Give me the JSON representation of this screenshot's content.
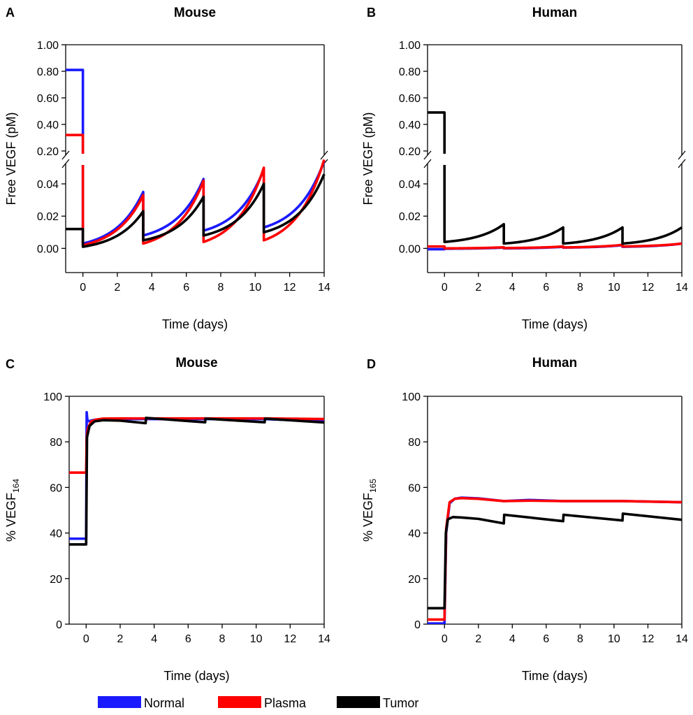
{
  "colors": {
    "normal": "#1a1aff",
    "plasma": "#ff0000",
    "tumor": "#000000"
  },
  "legend": [
    {
      "key": "normal",
      "label": "Normal"
    },
    {
      "key": "plasma",
      "label": "Plasma"
    },
    {
      "key": "tumor",
      "label": "Tumor"
    }
  ],
  "chart_data": [
    {
      "panel": "A",
      "title": "Mouse",
      "type": "line",
      "xlabel": "Time (days)",
      "ylabel": "Free VEGF (pM)",
      "xlim": [
        -1,
        14
      ],
      "xticks": [
        0,
        2,
        4,
        6,
        8,
        10,
        12,
        14
      ],
      "broken_axis": true,
      "ylim_low": [
        -0.015,
        0.05
      ],
      "ylim_high": [
        0.2,
        1.0
      ],
      "yticks_low": [
        "0.00",
        "0.02",
        "0.04"
      ],
      "yticks_high": [
        "0.20",
        "0.40",
        "0.60",
        "0.80",
        "1.00"
      ],
      "dose_days": [
        0,
        3.5,
        7,
        10.5
      ],
      "series": [
        {
          "key": "normal",
          "name": "Normal",
          "baseline": 0.81,
          "cycles": [
            {
              "t0": 0,
              "t1": 3.5,
              "y0": 0.003,
              "y1": 0.035
            },
            {
              "t0": 3.5,
              "t1": 7,
              "y0": 0.008,
              "y1": 0.043
            },
            {
              "t0": 7,
              "t1": 10.5,
              "y0": 0.011,
              "y1": 0.049
            },
            {
              "t0": 10.5,
              "t1": 14,
              "y0": 0.013,
              "y1": 0.054
            }
          ]
        },
        {
          "key": "plasma",
          "name": "Plasma",
          "baseline": 0.32,
          "cycles": [
            {
              "t0": 0,
              "t1": 3.5,
              "y0": 0.002,
              "y1": 0.033
            },
            {
              "t0": 3.5,
              "t1": 7,
              "y0": 0.003,
              "y1": 0.042
            },
            {
              "t0": 7,
              "t1": 10.5,
              "y0": 0.004,
              "y1": 0.05
            },
            {
              "t0": 10.5,
              "t1": 14,
              "y0": 0.005,
              "y1": 0.055
            }
          ]
        },
        {
          "key": "tumor",
          "name": "Tumor",
          "baseline": 0.012,
          "cycles": [
            {
              "t0": 0,
              "t1": 3.5,
              "y0": 0.001,
              "y1": 0.023
            },
            {
              "t0": 3.5,
              "t1": 7,
              "y0": 0.005,
              "y1": 0.032
            },
            {
              "t0": 7,
              "t1": 10.5,
              "y0": 0.008,
              "y1": 0.04
            },
            {
              "t0": 10.5,
              "t1": 14,
              "y0": 0.01,
              "y1": 0.046
            }
          ]
        }
      ]
    },
    {
      "panel": "B",
      "title": "Human",
      "type": "line",
      "xlabel": "Time (days)",
      "ylabel": "Free VEGF (pM)",
      "xlim": [
        -1,
        14
      ],
      "xticks": [
        0,
        2,
        4,
        6,
        8,
        10,
        12,
        14
      ],
      "broken_axis": true,
      "ylim_low": [
        -0.015,
        0.05
      ],
      "ylim_high": [
        0.2,
        1.0
      ],
      "yticks_low": [
        "0.00",
        "0.02",
        "0.04"
      ],
      "yticks_high": [
        "0.20",
        "0.40",
        "0.60",
        "0.80",
        "1.00"
      ],
      "dose_days": [
        0,
        3.5,
        7,
        10.5
      ],
      "series": [
        {
          "key": "normal",
          "name": "Normal",
          "baseline": -0.0005,
          "cycles": [
            {
              "t0": 0,
              "t1": 3.5,
              "y0": -0.0002,
              "y1": 0.0005
            },
            {
              "t0": 3.5,
              "t1": 7,
              "y0": 0,
              "y1": 0.001
            },
            {
              "t0": 7,
              "t1": 10.5,
              "y0": 0.0005,
              "y1": 0.002
            },
            {
              "t0": 10.5,
              "t1": 14,
              "y0": 0.001,
              "y1": 0.003
            }
          ]
        },
        {
          "key": "plasma",
          "name": "Plasma",
          "baseline": 0.0012,
          "cycles": [
            {
              "t0": 0,
              "t1": 3.5,
              "y0": 0,
              "y1": 0.0007
            },
            {
              "t0": 3.5,
              "t1": 7,
              "y0": 0.0002,
              "y1": 0.0012
            },
            {
              "t0": 7,
              "t1": 10.5,
              "y0": 0.0006,
              "y1": 0.0022
            },
            {
              "t0": 10.5,
              "t1": 14,
              "y0": 0.0012,
              "y1": 0.003
            }
          ]
        },
        {
          "key": "tumor",
          "name": "Tumor",
          "baseline": 0.49,
          "cycles": [
            {
              "t0": 0,
              "t1": 3.5,
              "y0": 0.004,
              "y1": 0.015
            },
            {
              "t0": 3.5,
              "t1": 7,
              "y0": 0.003,
              "y1": 0.013
            },
            {
              "t0": 7,
              "t1": 10.5,
              "y0": 0.003,
              "y1": 0.013
            },
            {
              "t0": 10.5,
              "t1": 14,
              "y0": 0.003,
              "y1": 0.013
            }
          ]
        }
      ]
    },
    {
      "panel": "C",
      "title": "Mouse",
      "type": "line",
      "xlabel": "Time (days)",
      "ylabel": "% VEGF",
      "ylabel_sub": "164",
      "xlim": [
        -1,
        14
      ],
      "xticks": [
        0,
        2,
        4,
        6,
        8,
        10,
        12,
        14
      ],
      "ylim": [
        0,
        100
      ],
      "yticks": [
        0,
        20,
        40,
        60,
        80,
        100
      ],
      "series": [
        {
          "key": "normal",
          "name": "Normal",
          "points": [
            [
              -1,
              37.5
            ],
            [
              0,
              37.5
            ],
            [
              0.03,
              93
            ],
            [
              0.08,
              89
            ],
            [
              0.2,
              89.2
            ],
            [
              0.5,
              89.7
            ],
            [
              1,
              90
            ],
            [
              2,
              90
            ],
            [
              3.5,
              90
            ],
            [
              7,
              90
            ],
            [
              10.5,
              90
            ],
            [
              14,
              89
            ]
          ]
        },
        {
          "key": "plasma",
          "name": "Plasma",
          "points": [
            [
              -1,
              66.5
            ],
            [
              0,
              66.5
            ],
            [
              0.03,
              82
            ],
            [
              0.1,
              86
            ],
            [
              0.3,
              89
            ],
            [
              0.6,
              89.8
            ],
            [
              1,
              90.2
            ],
            [
              2,
              90.3
            ],
            [
              3.5,
              90.3
            ],
            [
              7,
              90.3
            ],
            [
              10.5,
              90.3
            ],
            [
              14,
              90
            ]
          ]
        },
        {
          "key": "tumor",
          "name": "Tumor",
          "points": [
            [
              -1,
              35
            ],
            [
              0,
              35
            ],
            [
              0.05,
              82
            ],
            [
              0.2,
              87
            ],
            [
              0.5,
              89
            ],
            [
              1,
              89.5
            ],
            [
              2,
              89.3
            ],
            [
              3.5,
              88.2
            ],
            [
              3.52,
              90.5
            ],
            [
              7,
              88.6
            ],
            [
              7.02,
              90.2
            ],
            [
              10.5,
              88.6
            ],
            [
              10.52,
              90.2
            ],
            [
              14,
              88.5
            ]
          ]
        }
      ]
    },
    {
      "panel": "D",
      "title": "Human",
      "type": "line",
      "xlabel": "Time (days)",
      "ylabel": "% VEGF",
      "ylabel_sub": "165",
      "xlim": [
        -1,
        14
      ],
      "xticks": [
        0,
        2,
        4,
        6,
        8,
        10,
        12,
        14
      ],
      "ylim": [
        0,
        100
      ],
      "yticks": [
        0,
        20,
        40,
        60,
        80,
        100
      ],
      "series": [
        {
          "key": "normal",
          "name": "Normal",
          "points": [
            [
              -1,
              0.3
            ],
            [
              0,
              0.3
            ],
            [
              0.1,
              40
            ],
            [
              0.3,
              53
            ],
            [
              0.6,
              55
            ],
            [
              1,
              55.5
            ],
            [
              2,
              55.2
            ],
            [
              3.5,
              54
            ],
            [
              5,
              54.5
            ],
            [
              7,
              54
            ],
            [
              10.5,
              54
            ],
            [
              14,
              53.5
            ]
          ]
        },
        {
          "key": "plasma",
          "name": "Plasma",
          "points": [
            [
              -1,
              2
            ],
            [
              0,
              2
            ],
            [
              0.1,
              42
            ],
            [
              0.3,
              53.5
            ],
            [
              0.6,
              55
            ],
            [
              1,
              55.3
            ],
            [
              2,
              55
            ],
            [
              3.5,
              54
            ],
            [
              5,
              54.2
            ],
            [
              7,
              54
            ],
            [
              10.5,
              54
            ],
            [
              14,
              53.5
            ]
          ]
        },
        {
          "key": "tumor",
          "name": "Tumor",
          "points": [
            [
              -1,
              7
            ],
            [
              0,
              7
            ],
            [
              0.08,
              40
            ],
            [
              0.2,
              46
            ],
            [
              0.5,
              47
            ],
            [
              1,
              46.8
            ],
            [
              2,
              46.2
            ],
            [
              3.5,
              44.2
            ],
            [
              3.52,
              48
            ],
            [
              7,
              45.2
            ],
            [
              7.02,
              48
            ],
            [
              10.5,
              45.5
            ],
            [
              10.52,
              48.5
            ],
            [
              14,
              45.8
            ]
          ]
        }
      ]
    }
  ]
}
